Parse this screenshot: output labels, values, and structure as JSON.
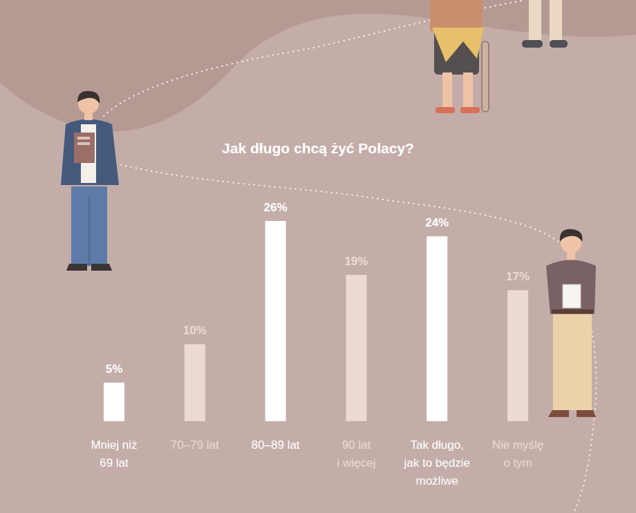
{
  "chart_data": {
    "type": "bar",
    "title": "Jak długo chcą żyć Polacy?",
    "categories": [
      "Mniej niż\n69 lat",
      "70–79 lat",
      "80–89 lat",
      "90 lat\ni więcej",
      "Tak długo,\njak to będzie\nmożliwe",
      "Nie myślę\no tym"
    ],
    "values": [
      5,
      10,
      26,
      19,
      24,
      17
    ],
    "value_labels": [
      "5%",
      "10%",
      "26%",
      "19%",
      "24%",
      "17%"
    ],
    "colors": [
      "#ffffff",
      "#ecd9d3",
      "#ffffff",
      "#ecd9d3",
      "#ffffff",
      "#ecd9d3"
    ],
    "ylim": [
      0,
      26
    ],
    "data_labels": true,
    "tick_labels": false,
    "grid": false
  }
}
